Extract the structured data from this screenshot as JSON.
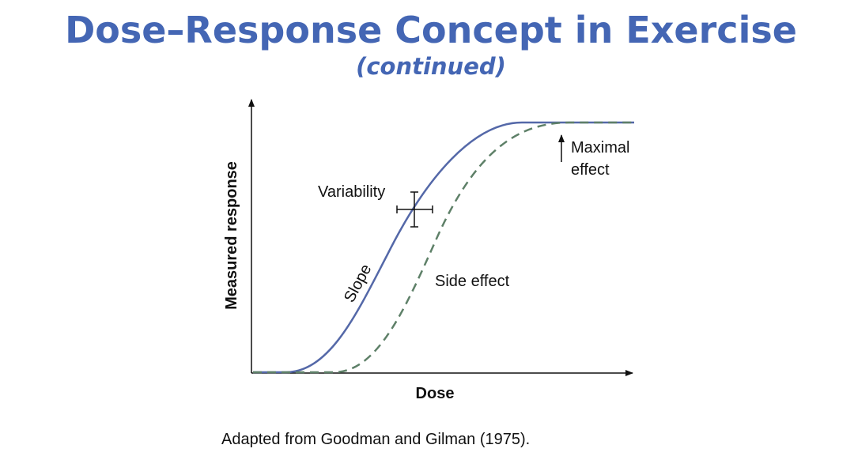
{
  "header": {
    "title": "Dose–Response Concept in Exercise",
    "subtitle": "(continued)"
  },
  "diagram": {
    "y_axis_label": "Measured response",
    "x_axis_label": "Dose",
    "annotations": {
      "variability": "Variability",
      "slope": "Slope",
      "side_effect": "Side effect",
      "maximal_effect": [
        "Maximal",
        "effect"
      ]
    }
  },
  "caption": "Adapted from Goodman and Gilman (1975)."
}
